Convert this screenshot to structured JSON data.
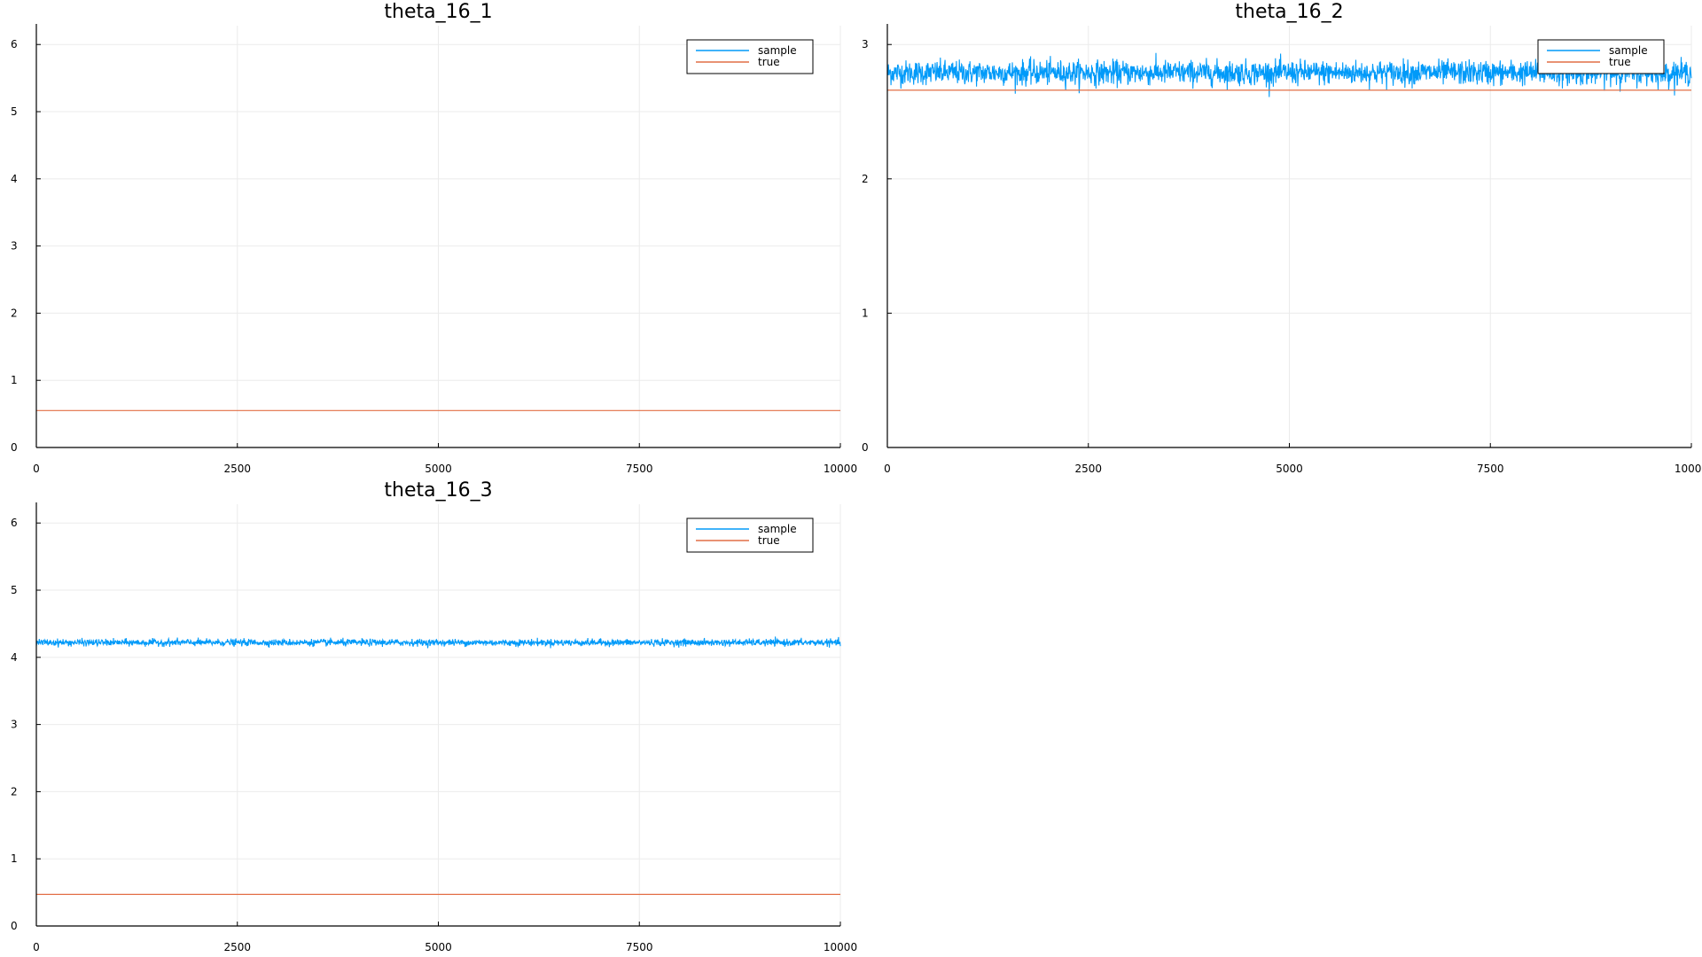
{
  "colors": {
    "sample": "#009af9",
    "true": "#e26f46",
    "grid": "#ebebeb",
    "axis": "#000000"
  },
  "chart_data": [
    {
      "type": "line",
      "title": "theta_16_1",
      "xlim": [
        0,
        10000
      ],
      "ylim": [
        0,
        6.28
      ],
      "xticks": [
        0,
        2500,
        5000,
        7500,
        10000
      ],
      "yticks": [
        0,
        1,
        2,
        3,
        4,
        5,
        6
      ],
      "grid": true,
      "legend_position": "top-right",
      "series": [
        {
          "name": "sample",
          "kind": "noisy-trace",
          "mean": null,
          "spread": 0,
          "visible": false
        },
        {
          "name": "true",
          "kind": "constant",
          "value": 0.55
        }
      ]
    },
    {
      "type": "line",
      "title": "theta_16_2",
      "xlim": [
        0,
        10000
      ],
      "ylim": [
        0,
        3.14
      ],
      "xticks": [
        0,
        2500,
        5000,
        7500,
        10000
      ],
      "yticks": [
        0,
        1,
        2,
        3
      ],
      "grid": true,
      "legend_position": "top-right",
      "series": [
        {
          "name": "sample",
          "kind": "noisy-trace",
          "mean": 2.79,
          "spread": 0.09
        },
        {
          "name": "true",
          "kind": "constant",
          "value": 2.66
        }
      ]
    },
    {
      "type": "line",
      "title": "theta_16_3",
      "xlim": [
        0,
        10000
      ],
      "ylim": [
        0,
        6.28
      ],
      "xticks": [
        0,
        2500,
        5000,
        7500,
        10000
      ],
      "yticks": [
        0,
        1,
        2,
        3,
        4,
        5,
        6
      ],
      "grid": true,
      "legend_position": "top-right",
      "series": [
        {
          "name": "sample",
          "kind": "noisy-trace",
          "mean": 4.22,
          "spread": 0.05
        },
        {
          "name": "true",
          "kind": "constant",
          "value": 0.47
        }
      ]
    }
  ]
}
